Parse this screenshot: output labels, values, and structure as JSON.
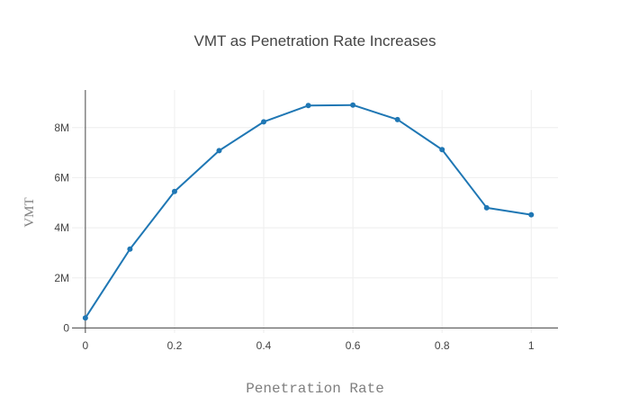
{
  "chart_data": {
    "type": "line",
    "title": "VMT as Penetration Rate Increases",
    "xlabel": "Penetration Rate",
    "ylabel": "VMT",
    "x": [
      0,
      0.1,
      0.2,
      0.3,
      0.4,
      0.5,
      0.6,
      0.7,
      0.8,
      0.9,
      1
    ],
    "series": [
      {
        "values": [
          400000,
          3150000,
          5450000,
          7080000,
          8230000,
          8880000,
          8900000,
          8320000,
          7120000,
          4800000,
          4520000
        ],
        "color": "#1f77b4"
      }
    ],
    "xlim": [
      -0.03,
      1.06
    ],
    "ylim": [
      -200000,
      9500000
    ],
    "x_ticks": [
      0,
      0.2,
      0.4,
      0.6,
      0.8,
      1
    ],
    "x_tick_labels": [
      "0",
      "0.2",
      "0.4",
      "0.6",
      "0.8",
      "1"
    ],
    "y_ticks": [
      0,
      2000000,
      4000000,
      6000000,
      8000000
    ],
    "y_tick_labels": [
      "0",
      "2M",
      "4M",
      "6M",
      "8M"
    ],
    "grid": true,
    "legend": "none",
    "colors": {
      "grid": "#eeeeee",
      "axis": "#444444"
    }
  }
}
